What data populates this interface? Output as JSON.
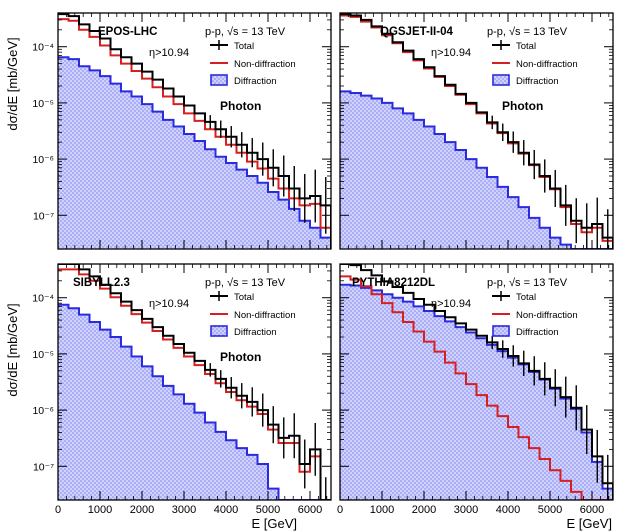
{
  "figure": {
    "ylabel": "dσ/dE [mb/GeV]",
    "xlabel": "E [GeV]"
  },
  "legend": {
    "total": "Total",
    "nondiff": "Non-diffraction",
    "diff": "Diffraction"
  },
  "common_text": {
    "collision": "p-p,",
    "energy": "√s = 13 TeV",
    "eta_cut": "η>10.94",
    "particle": "Photon"
  },
  "colors": {
    "total": "#000000",
    "nondiff": "#d62020",
    "diff": "#2a2adf",
    "diff_fill": "#c7c9ff"
  },
  "chart_data": [
    {
      "type": "line",
      "model": "EPOS-LHC",
      "xlim": [
        0,
        6500
      ],
      "ylim_log10": [
        -7.6,
        -3.4
      ],
      "y_ticks": [
        "10⁻⁴",
        "10⁻⁵",
        "10⁻⁶",
        "10⁻⁷"
      ],
      "x_ticks": [],
      "bin_width": 250,
      "series": [
        {
          "name": "Total",
          "values": [
            0.00038,
            0.00035,
            0.00025,
            0.00019,
            0.00014,
            9e-05,
            6.5e-05,
            5e-05,
            3.6e-05,
            2.6e-05,
            1.8e-05,
            1.3e-05,
            9e-06,
            6.5e-06,
            4.6e-06,
            3.4e-06,
            2.5e-06,
            1.8e-06,
            1.3e-06,
            1e-06,
            7e-07,
            5e-07,
            3e-07,
            2e-07,
            2.2e-07,
            1.5e-07
          ]
        },
        {
          "name": "Non-diffraction",
          "values": [
            0.00031,
            0.00029,
            0.0002,
            0.00015,
            0.000105,
            7e-05,
            5e-05,
            3.7e-05,
            2.7e-05,
            1.9e-05,
            1.3e-05,
            9.5e-06,
            6.5e-06,
            4.8e-06,
            3.4e-06,
            2.5e-06,
            1.8e-06,
            1.3e-06,
            9e-07,
            6.8e-07,
            4.5e-07,
            3e-07,
            2e-07,
            1.5e-07,
            1.6e-07,
            6e-08
          ]
        },
        {
          "name": "Diffraction",
          "values": [
            6.5e-05,
            6e-05,
            4.5e-05,
            3.8e-05,
            3e-05,
            2.2e-05,
            1.6e-05,
            1.3e-05,
            9.5e-06,
            7e-06,
            5e-06,
            3.8e-06,
            2.8e-06,
            2.1e-06,
            1.5e-06,
            1.1e-06,
            8.5e-07,
            6.5e-07,
            5e-07,
            3.8e-07,
            2.6e-07,
            1.9e-07,
            1.3e-07,
            8e-08,
            6e-08,
            4e-08
          ]
        }
      ]
    },
    {
      "type": "line",
      "model": "QGSJET-II-04",
      "xlim": [
        0,
        6500
      ],
      "ylim_log10": [
        -7.6,
        -3.4
      ],
      "y_ticks": [],
      "x_ticks": [],
      "bin_width": 250,
      "series": [
        {
          "name": "Total",
          "values": [
            0.00038,
            0.00036,
            0.0003,
            0.00023,
            0.00017,
            0.00012,
            8.5e-05,
            6e-05,
            4.3e-05,
            3e-05,
            2.1e-05,
            1.45e-05,
            1e-05,
            6.8e-06,
            4.5e-06,
            3e-06,
            2e-06,
            1.3e-06,
            8e-07,
            5e-07,
            3e-07,
            1.5e-07,
            8e-08,
            6e-08,
            7e-08,
            4e-08
          ]
        },
        {
          "name": "Non-diffraction",
          "values": [
            0.00036,
            0.00034,
            0.00028,
            0.00022,
            0.00016,
            0.000115,
            8e-05,
            5.7e-05,
            4.1e-05,
            2.9e-05,
            2e-05,
            1.4e-05,
            9.5e-06,
            6.5e-06,
            4.3e-06,
            2.9e-06,
            1.9e-06,
            1.25e-06,
            7.8e-07,
            4.8e-07,
            2.9e-07,
            1.4e-07,
            7e-08,
            5e-08,
            6e-08,
            3.5e-08
          ]
        },
        {
          "name": "Diffraction",
          "values": [
            1.6e-05,
            1.5e-05,
            1.35e-05,
            1.2e-05,
            1e-05,
            8e-06,
            6.5e-06,
            5e-06,
            3.8e-06,
            2.8e-06,
            2e-06,
            1.45e-06,
            1e-06,
            7e-07,
            4.8e-07,
            3.2e-07,
            2.1e-07,
            1.4e-07,
            9e-08,
            6e-08,
            4e-08,
            3e-08,
            2.5e-08,
            2e-08,
            2e-08,
            2e-08
          ]
        }
      ]
    },
    {
      "type": "line",
      "model": "SIBYLL2.3",
      "xlim": [
        0,
        6500
      ],
      "ylim_log10": [
        -7.6,
        -3.4
      ],
      "y_ticks": [
        "10⁻⁴",
        "10⁻⁵",
        "10⁻⁶",
        "10⁻⁷"
      ],
      "x_ticks": [
        "0",
        "1000",
        "2000",
        "3000",
        "4000",
        "5000",
        "6000"
      ],
      "bin_width": 250,
      "series": [
        {
          "name": "Total",
          "values": [
            0.0004,
            0.0004,
            0.00032,
            0.00024,
            0.00017,
            0.00012,
            8.5e-05,
            6e-05,
            4.2e-05,
            3e-05,
            2.1e-05,
            1.5e-05,
            1.05e-05,
            7.5e-06,
            5.2e-06,
            3.6e-06,
            2.5e-06,
            1.8e-06,
            1.4e-06,
            1e-06,
            5.5e-07,
            3.2e-07,
            3.5e-07,
            1.1e-07,
            2e-07,
            2e-08
          ]
        },
        {
          "name": "Non-diffraction",
          "values": [
            0.00032,
            0.00032,
            0.00026,
            0.0002,
            0.000145,
            0.000102,
            7.2e-05,
            5.1e-05,
            3.6e-05,
            2.55e-05,
            1.8e-05,
            1.28e-05,
            9e-06,
            6.3e-06,
            4.4e-06,
            3e-06,
            2.1e-06,
            1.5e-06,
            1.15e-06,
            8.5e-07,
            4.5e-07,
            2.6e-07,
            2.6e-07,
            8e-08,
            1.5e-07,
            2e-08
          ]
        },
        {
          "name": "Diffraction",
          "values": [
            7.5e-05,
            6.5e-05,
            5e-05,
            3.7e-05,
            2.7e-05,
            2e-05,
            1.35e-05,
            9e-06,
            6e-06,
            4e-06,
            2.7e-06,
            1.9e-06,
            1.3e-06,
            9e-07,
            6e-07,
            4.1e-07,
            2.9e-07,
            2.1e-07,
            1.6e-07,
            1.1e-07,
            4e-08,
            2.5e-08,
            2e-08,
            2e-08,
            2e-08,
            2e-08
          ]
        }
      ]
    },
    {
      "type": "line",
      "model": "PYTHIA8212DL",
      "xlim": [
        0,
        6500
      ],
      "ylim_log10": [
        -7.6,
        -3.4
      ],
      "y_ticks": [],
      "x_ticks": [
        "0",
        "1000",
        "2000",
        "3000",
        "4000",
        "5000",
        "6000"
      ],
      "bin_width": 250,
      "series": [
        {
          "name": "Total",
          "values": [
            0.00042,
            0.00038,
            0.00031,
            0.00025,
            0.000195,
            0.000155,
            0.000122,
            9.5e-05,
            7.5e-05,
            5.8e-05,
            4.5e-05,
            3.5e-05,
            2.7e-05,
            2.1e-05,
            1.6e-05,
            1.22e-05,
            9.2e-06,
            6.8e-06,
            5e-06,
            3.6e-06,
            2.5e-06,
            1.7e-06,
            1.1e-06,
            4.5e-07,
            1.5e-07,
            5e-08
          ]
        },
        {
          "name": "Non-diffraction",
          "values": [
            0.00024,
            0.00021,
            0.00016,
            0.000115,
            8e-05,
            5.5e-05,
            3.7e-05,
            2.5e-05,
            1.65e-05,
            1.1e-05,
            7e-06,
            4.5e-06,
            2.9e-06,
            1.85e-06,
            1.2e-06,
            7.8e-07,
            5e-07,
            3.3e-07,
            2.1e-07,
            1.35e-07,
            8.5e-08,
            5.5e-08,
            3.5e-08,
            2.5e-08,
            2e-08,
            2e-08
          ]
        },
        {
          "name": "Diffraction",
          "values": [
            0.00017,
            0.000165,
            0.00015,
            0.000135,
            0.000115,
            0.0001,
            8.5e-05,
            7e-05,
            5.8e-05,
            4.7e-05,
            3.8e-05,
            3e-05,
            2.4e-05,
            1.9e-05,
            1.45e-05,
            1.12e-05,
            8.6e-06,
            6.5e-06,
            4.8e-06,
            3.5e-06,
            2.4e-06,
            1.6e-06,
            1.05e-06,
            4e-07,
            1.2e-07,
            4e-08
          ]
        }
      ]
    }
  ]
}
